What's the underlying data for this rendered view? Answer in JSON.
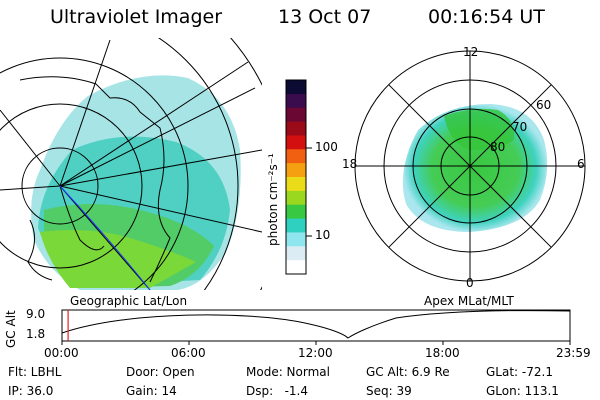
{
  "header": {
    "instrument": "Ultraviolet Imager",
    "date": "13 Oct 07",
    "time": "00:16:54 UT"
  },
  "colorbar": {
    "unit": "photon cm⁻²s⁻¹",
    "ticks": [
      "100",
      "10"
    ],
    "colors": [
      "#0b0b33",
      "#3a0b4d",
      "#6a0833",
      "#9a0a18",
      "#d40f0f",
      "#f06010",
      "#f5a010",
      "#eadc18",
      "#9ad81f",
      "#39c841",
      "#2fd0c0",
      "#8fe6ee",
      "#dcecf4",
      "#ffffff"
    ]
  },
  "geo_panel": {
    "label": "Geographic Lat/Lon"
  },
  "polar_panel": {
    "label": "Apex MLat/MLT",
    "mlt_labels": [
      "12",
      "18",
      "6",
      "0"
    ],
    "mlat_labels": [
      "60",
      "70",
      "80"
    ]
  },
  "altitude_plot": {
    "ylabel": "GC Alt",
    "y_ticks": [
      "9.0",
      "1.8"
    ],
    "x_ticks": [
      "00:00",
      "06:00",
      "12:00",
      "18:00",
      "23:59"
    ],
    "current_time_fraction": 0.012
  },
  "status": {
    "row1": [
      {
        "key": "filter",
        "text": "Flt: LBHL"
      },
      {
        "key": "door",
        "text": "Door: Open"
      },
      {
        "key": "mode",
        "text": "Mode: Normal"
      },
      {
        "key": "gcalt",
        "text": "GC Alt: 6.9 Re"
      },
      {
        "key": "glat",
        "text": "GLat: -72.1"
      }
    ],
    "row2": [
      {
        "key": "ip",
        "text": "IP: 36.0"
      },
      {
        "key": "gain",
        "text": "Gain: 14"
      },
      {
        "key": "dsp",
        "text": "Dsp:   -1.4"
      },
      {
        "key": "seq",
        "text": "Seq: 39"
      },
      {
        "key": "glon",
        "text": "GLon: 113.1"
      }
    ]
  }
}
